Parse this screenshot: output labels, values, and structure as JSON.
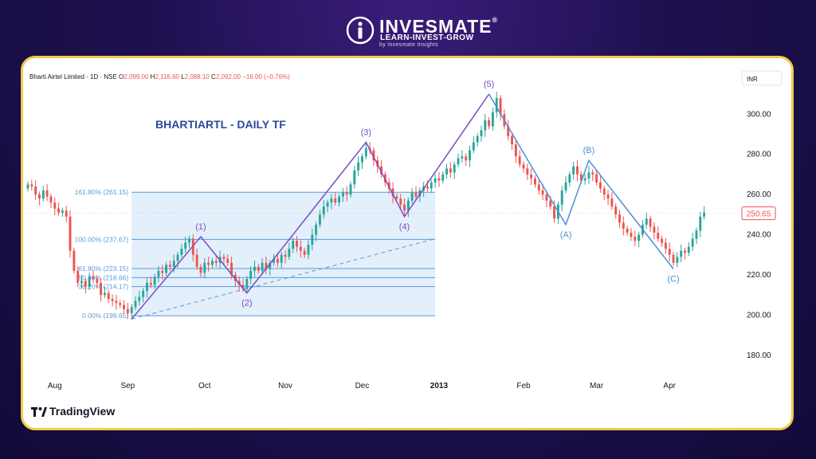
{
  "brand": {
    "name": "INVESMATE",
    "registered": "®",
    "tagline": "LEARN-INVEST-GROW",
    "subline": "by Invesmate Insights"
  },
  "platform": {
    "name": "TradingView"
  },
  "colors": {
    "bull": "#26a69a",
    "bear": "#ef5350",
    "impulse_wave": "#7b4cc4",
    "corrective_wave": "#4a8fd6",
    "fib_fill": "#dcebfa",
    "fib_line": "#5b9bd5",
    "title": "#2a4a9e",
    "price_badge": "#ef5350"
  },
  "chart_data": {
    "type": "candlestick",
    "header": {
      "symbol": "Bharti Airtel Limited · 1D · NSE",
      "o_label": "O",
      "o": "2,099.00",
      "h_label": "H",
      "h": "2,116.60",
      "l_label": "L",
      "l": "2,088.10",
      "c_label": "C",
      "c": "2,092.00",
      "change": "−16.00 (−0.76%)"
    },
    "currency": "INR",
    "title": "BHARTIARTL - DAILY TF",
    "last_price": "250.65",
    "last_price_value": 250.65,
    "ylim": [
      170,
      312
    ],
    "y_ticks": [
      {
        "value": 180,
        "label": "180.00"
      },
      {
        "value": 200,
        "label": "200.00"
      },
      {
        "value": 220,
        "label": "220.00"
      },
      {
        "value": 240,
        "label": "240.00"
      },
      {
        "value": 260,
        "label": "260.00"
      },
      {
        "value": 280,
        "label": "280.00"
      },
      {
        "value": 300,
        "label": "300.00"
      }
    ],
    "x_ticks": [
      {
        "day": 7,
        "label": "Aug"
      },
      {
        "day": 26,
        "label": "Sep"
      },
      {
        "day": 46,
        "label": "Oct"
      },
      {
        "day": 67,
        "label": "Nov"
      },
      {
        "day": 87,
        "label": "Dec"
      },
      {
        "day": 107,
        "label": "2013",
        "bold": true
      },
      {
        "day": 129,
        "label": "Feb"
      },
      {
        "day": 148,
        "label": "Mar"
      },
      {
        "day": 167,
        "label": "Apr"
      }
    ],
    "x_range": [
      0,
      185
    ],
    "fibonacci": {
      "day_start": 27,
      "day_end": 106,
      "levels": [
        {
          "label": "0.00% (199.65)",
          "value": 199.65
        },
        {
          "label": "38.20% (214.17)",
          "value": 214.17
        },
        {
          "label": "50.00% (218.66)",
          "value": 218.66
        },
        {
          "label": "61.80% (223.15)",
          "value": 223.15
        },
        {
          "label": "100.00% (237.67)",
          "value": 237.67
        },
        {
          "label": "161.80% (261.15)",
          "value": 261.15
        }
      ]
    },
    "trendline": {
      "from": {
        "day": 27,
        "value": 198
      },
      "to": {
        "day": 106,
        "value": 238
      }
    },
    "impulse_wave": [
      {
        "day": 27,
        "value": 198,
        "label": ""
      },
      {
        "day": 45,
        "value": 239,
        "label": "(1)",
        "pos": "above"
      },
      {
        "day": 57,
        "value": 211,
        "label": "(2)",
        "pos": "below"
      },
      {
        "day": 88,
        "value": 286,
        "label": "(3)",
        "pos": "above"
      },
      {
        "day": 98,
        "value": 249,
        "label": "(4)",
        "pos": "below"
      },
      {
        "day": 120,
        "value": 310,
        "label": "(5)",
        "pos": "above"
      }
    ],
    "corrective_wave": [
      {
        "day": 120,
        "value": 310,
        "label": ""
      },
      {
        "day": 140,
        "value": 245,
        "label": "(A)",
        "pos": "below"
      },
      {
        "day": 146,
        "value": 277,
        "label": "(B)",
        "pos": "above"
      },
      {
        "day": 168,
        "value": 223,
        "label": "(C)",
        "pos": "below"
      }
    ],
    "closes": [
      265,
      264,
      260,
      258,
      262,
      259,
      256,
      253,
      251,
      252,
      249,
      232,
      222,
      216,
      217,
      214,
      219,
      218,
      216,
      210,
      211,
      208,
      207,
      206,
      205,
      203,
      201,
      204,
      207,
      209,
      212,
      216,
      215,
      219,
      222,
      221,
      225,
      224,
      227,
      230,
      233,
      236,
      238,
      230,
      224,
      221,
      226,
      225,
      227,
      226,
      229,
      228,
      226,
      220,
      217,
      215,
      213,
      218,
      222,
      224,
      222,
      226,
      223,
      226,
      228,
      226,
      230,
      229,
      233,
      237,
      234,
      232,
      230,
      235,
      240,
      245,
      250,
      254,
      256,
      258,
      256,
      259,
      261,
      260,
      265,
      272,
      276,
      279,
      283,
      282,
      277,
      274,
      270,
      266,
      263,
      259,
      258,
      255,
      252,
      257,
      261,
      259,
      262,
      264,
      263,
      266,
      268,
      267,
      270,
      273,
      271,
      275,
      278,
      279,
      277,
      282,
      286,
      289,
      292,
      297,
      294,
      301,
      308,
      300,
      294,
      289,
      285,
      279,
      275,
      273,
      270,
      268,
      265,
      262,
      260,
      257,
      254,
      248,
      255,
      262,
      266,
      270,
      274,
      270,
      267,
      268,
      271,
      270,
      266,
      263,
      260,
      258,
      254,
      250,
      246,
      243,
      241,
      239,
      237,
      240,
      245,
      248,
      244,
      241,
      238,
      236,
      233,
      230,
      226,
      229,
      232,
      231,
      234,
      238,
      242,
      249,
      251
    ]
  }
}
